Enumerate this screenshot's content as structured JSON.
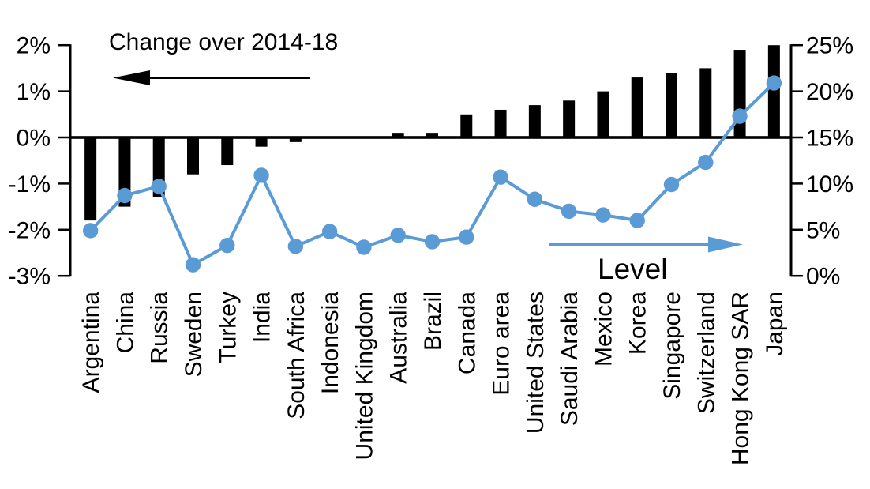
{
  "chart_data": {
    "type": "bar+line",
    "title": "",
    "categories": [
      "Argentina",
      "China",
      "Russia",
      "Sweden",
      "Turkey",
      "India",
      "South Africa",
      "Indonesia",
      "United Kingdom",
      "Australia",
      "Brazil",
      "Canada",
      "Euro area",
      "United States",
      "Saudi Arabia",
      "Mexico",
      "Korea",
      "Singapore",
      "Switzerland",
      "Hong Kong SAR",
      "Japan"
    ],
    "series": [
      {
        "name": "Change over 2014-18",
        "type": "bar",
        "axis": "left",
        "color": "#000000",
        "values": [
          -1.8,
          -1.5,
          -1.3,
          -0.8,
          -0.6,
          -0.2,
          -0.1,
          0.0,
          0.0,
          0.1,
          0.1,
          0.5,
          0.6,
          0.7,
          0.8,
          1.0,
          1.3,
          1.4,
          1.5,
          1.9,
          2.0
        ]
      },
      {
        "name": "Level",
        "type": "line",
        "axis": "right",
        "color": "#5B9BD5",
        "values": [
          4.9,
          8.7,
          9.7,
          1.2,
          3.3,
          10.9,
          3.2,
          4.8,
          3.1,
          4.4,
          3.7,
          4.2,
          10.7,
          8.3,
          7.0,
          6.6,
          6.0,
          9.9,
          12.3,
          17.3,
          20.9
        ]
      }
    ],
    "left_axis": {
      "min": -3,
      "max": 2,
      "tick_step": 1,
      "tick_values": [
        2,
        1,
        0,
        -1,
        -2,
        -3
      ],
      "tick_labels": [
        "2%",
        "1%",
        "0%",
        "-1%",
        "-2%",
        "-3%"
      ]
    },
    "right_axis": {
      "min": 0,
      "max": 25,
      "tick_step": 5,
      "tick_values": [
        25,
        20,
        15,
        10,
        5,
        0
      ],
      "tick_labels": [
        "25%",
        "20%",
        "15%",
        "10%",
        "5%",
        "0%"
      ]
    },
    "annotations": [
      {
        "text": "Change over 2014-18",
        "arrow_direction": "left",
        "color": "#000000"
      },
      {
        "text": "Level",
        "arrow_direction": "right",
        "color": "#5B9BD5"
      }
    ],
    "grid": false,
    "legend_position": "none"
  }
}
